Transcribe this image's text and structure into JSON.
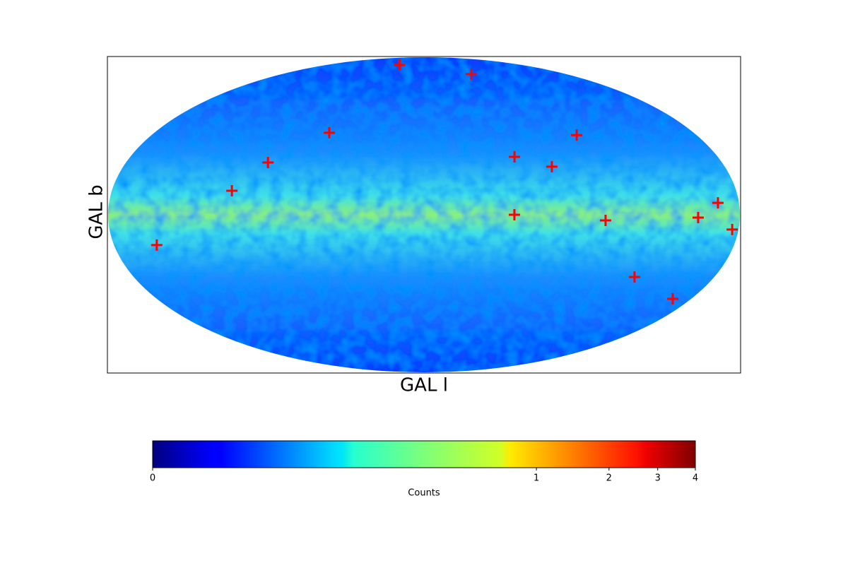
{
  "chart_data": {
    "type": "mollweide",
    "x_label": "GAL l",
    "y_label": "GAL b",
    "markers": {
      "color": "#ff0000",
      "l": [
        43.4,
        301.5,
        63,
        259.5,
        94,
        304.7,
        283.7,
        110.5,
        308.6,
        256.7,
        204.1,
        192.4,
        184,
        154.8,
        229.8,
        193.1
      ],
      "b": [
        80.2,
        73,
        39,
        37.8,
        24.4,
        27.1,
        22.4,
        11.1,
        0,
        -2.6,
        -1.3,
        5.5,
        -6.8,
        -14,
        -29.2,
        -40
      ]
    },
    "colorbar": {
      "label": "Counts",
      "colormap": "jet",
      "lim": [
        0,
        4
      ],
      "ticks": [
        0,
        1,
        2,
        3,
        4
      ],
      "scale": "power",
      "exponent": 0.25
    }
  }
}
